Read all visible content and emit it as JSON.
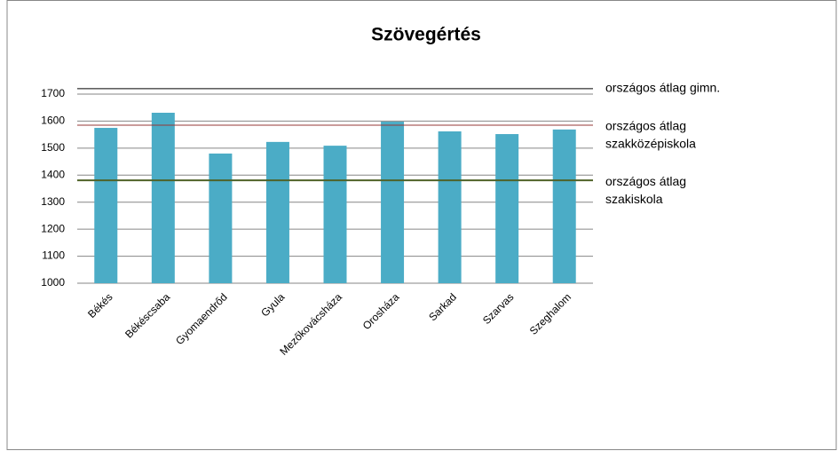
{
  "chart_data": {
    "type": "bar",
    "title": "Szövegértés",
    "categories": [
      "Békés",
      "Békéscsaba",
      "Gyomaendrőd",
      "Gyula",
      "Mezőkovácsháza",
      "Orosháza",
      "Sarkad",
      "Szarvas",
      "Szeghalom"
    ],
    "values": [
      1575,
      1631,
      1480,
      1523,
      1509,
      1598,
      1562,
      1552,
      1569
    ],
    "color": "#4bacc6",
    "ylim": [
      1000,
      1745
    ],
    "yticks": [
      1000,
      1100,
      1200,
      1300,
      1400,
      1500,
      1600,
      1700
    ],
    "grid": true,
    "reference_lines": [
      {
        "label": [
          "országos  átlag gimn."
        ],
        "value": 1720,
        "color": "#000000"
      },
      {
        "label": [
          "országos átlag",
          "szakközépiskola"
        ],
        "value": 1585,
        "color": "#953735"
      },
      {
        "label": [
          "országos átlag",
          "szakiskola"
        ],
        "value": 1381,
        "color": "#4f6228"
      }
    ]
  }
}
